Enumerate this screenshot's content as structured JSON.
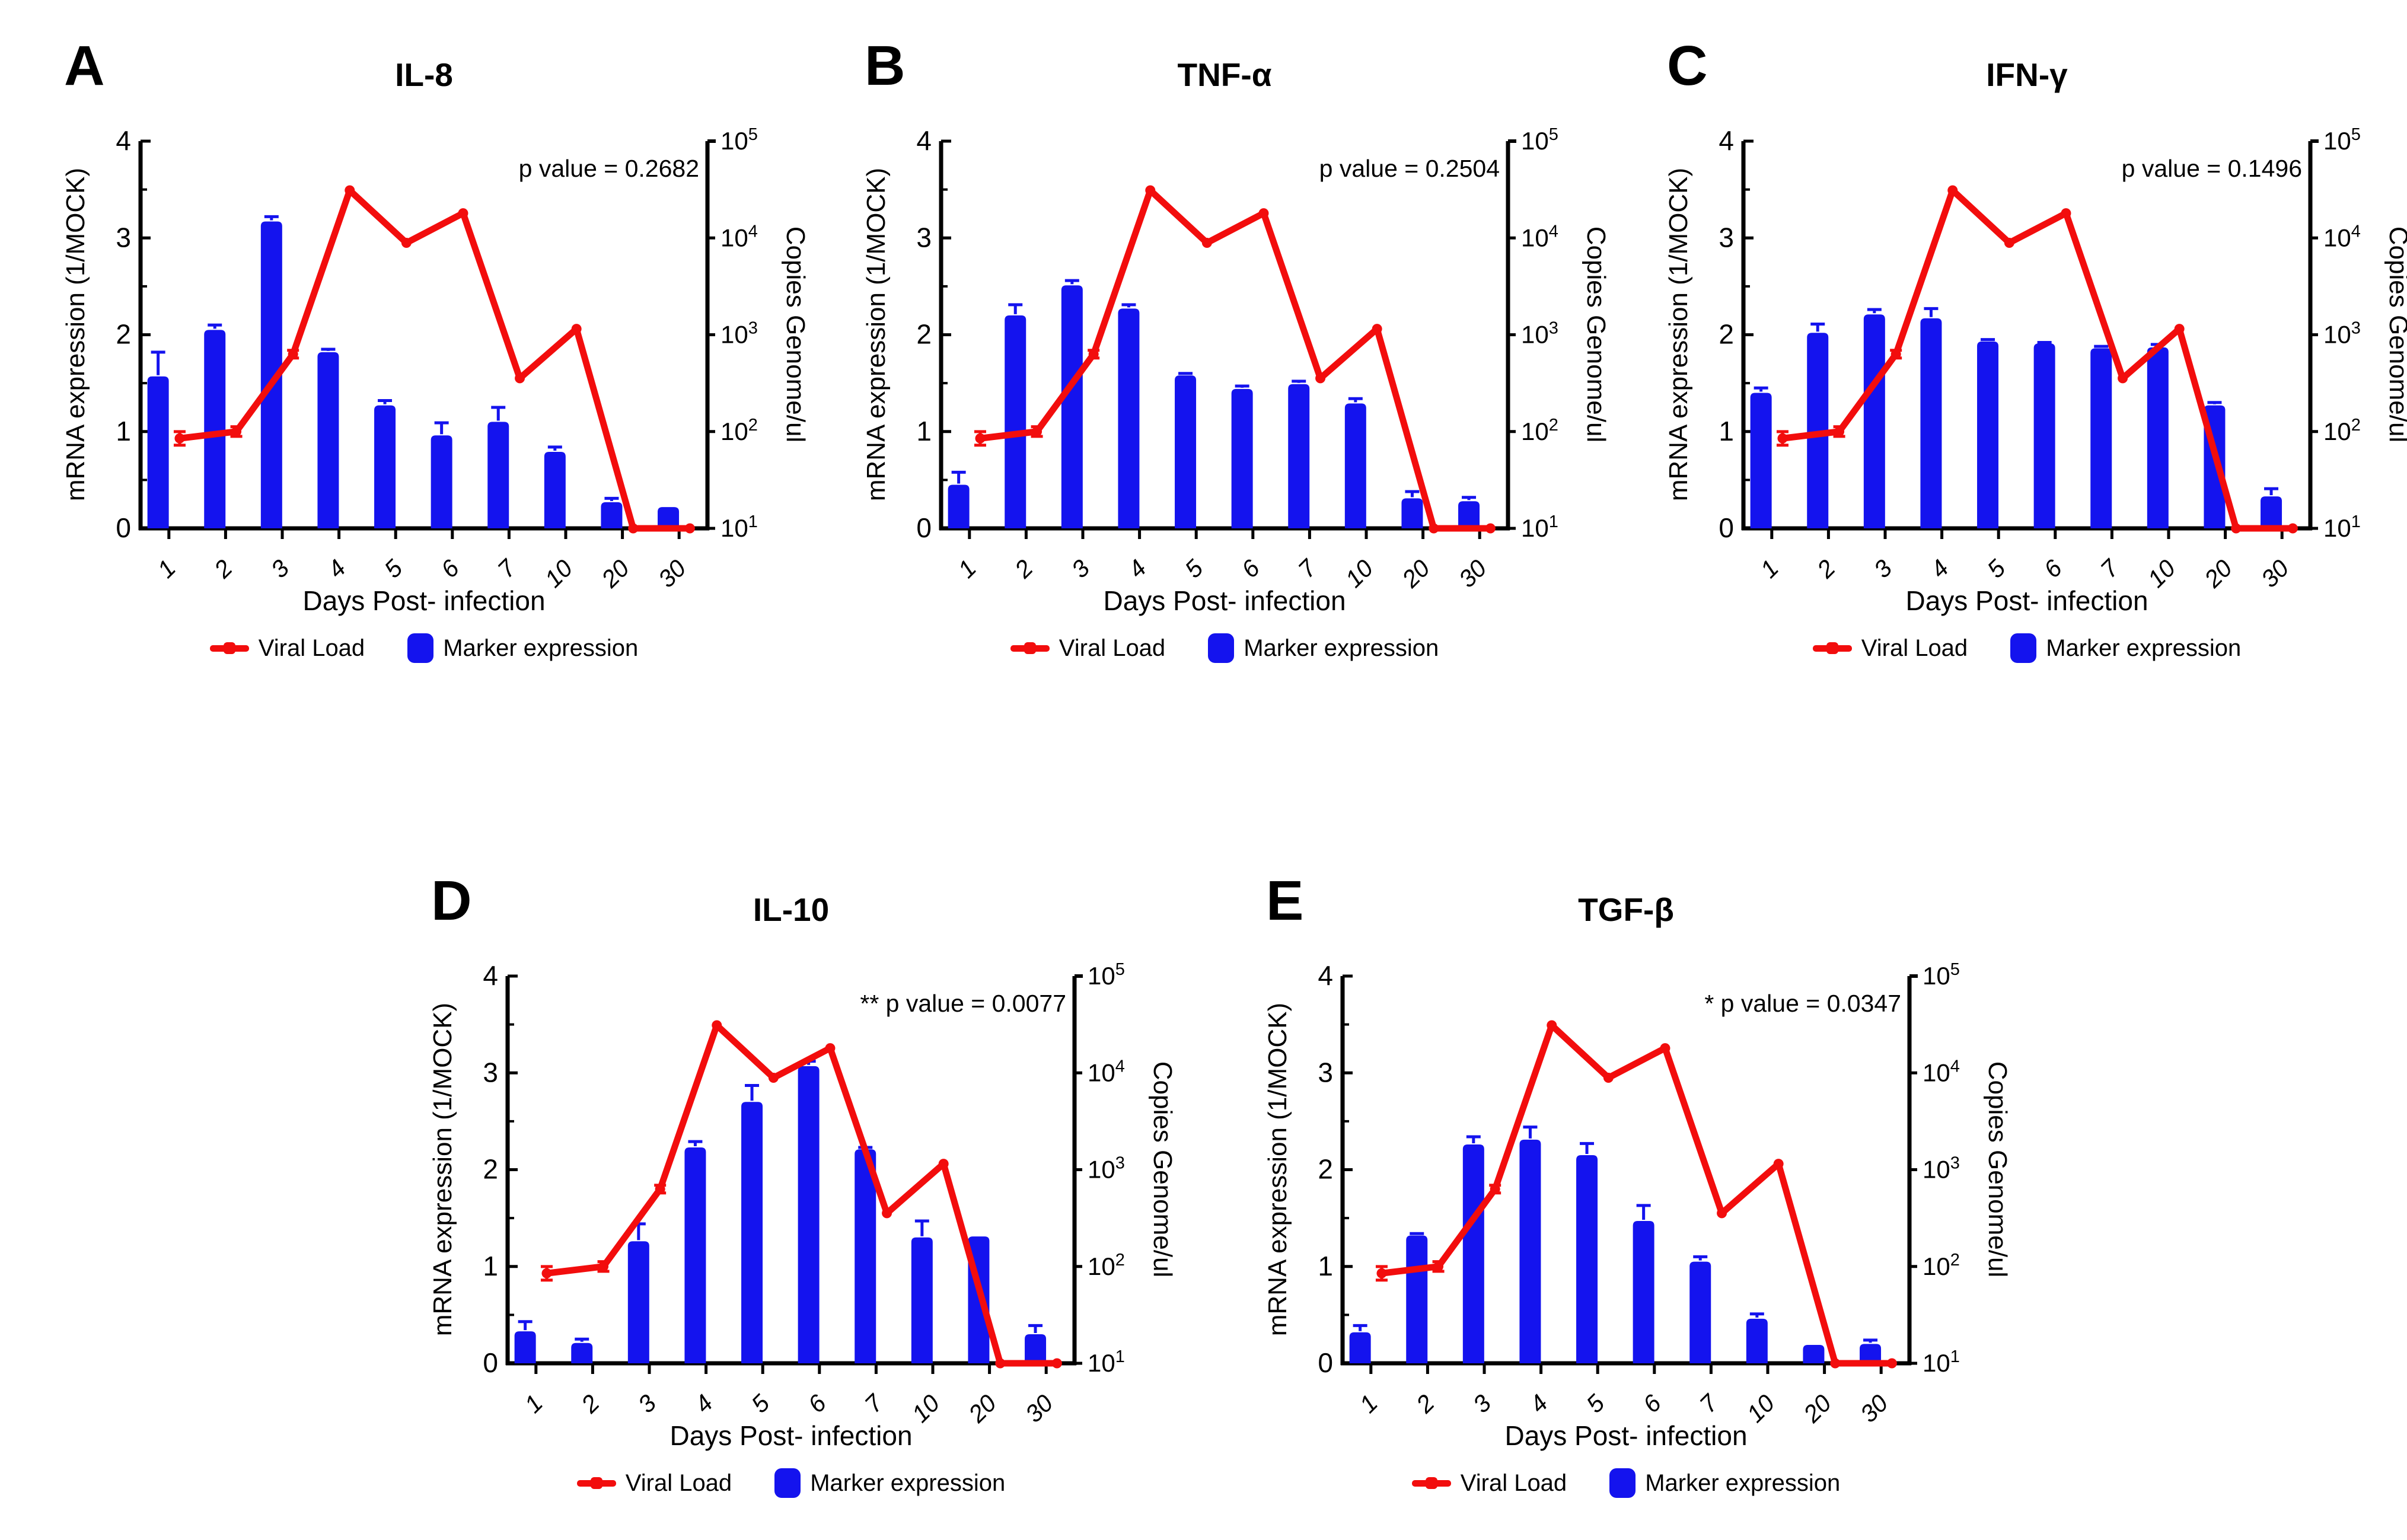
{
  "figure": {
    "axes": {
      "left_label": "mRNA expression (1/MOCK)",
      "right_label": "Copies Genome/ul",
      "x_label": "Days Post- infection",
      "left_ticks": [
        0,
        1,
        2,
        3,
        4
      ],
      "left_minor_ticks": [
        0.5,
        1.5,
        2.5,
        3.5
      ],
      "right_tick_exponents": [
        1,
        2,
        3,
        4,
        5
      ],
      "right_tick_base": "10"
    },
    "legend": {
      "viral_label": "Viral Load",
      "marker_label": "Marker expression"
    },
    "colors": {
      "bar_blue": "#1413ee",
      "line_red": "#f20d0d",
      "axis_black": "#000000",
      "background": "#ffffff"
    }
  },
  "chart_data": [
    {
      "letter": "A",
      "title": "IL-8",
      "p_label": "p value = 0.2682",
      "type": "bar+line",
      "categories": [
        "1",
        "2",
        "3",
        "4",
        "5",
        "6",
        "7",
        "10",
        "20",
        "30"
      ],
      "xlabel": "Days Post- infection",
      "ylabel_left": "mRNA expression (1/MOCK)",
      "ylabel_right": "Copies Genome/ul",
      "ylim_left": [
        0,
        4
      ],
      "right_axis": {
        "scale": "log10",
        "lim": [
          10,
          100000
        ],
        "ticks": [
          "10^1",
          "10^2",
          "10^3",
          "10^4",
          "10^5"
        ]
      },
      "series": [
        {
          "name": "Marker expression",
          "type": "bar",
          "axis": "left",
          "values": [
            1.57,
            2.05,
            3.17,
            1.82,
            1.27,
            0.96,
            1.1,
            0.79,
            0.27,
            0.22
          ],
          "errors": [
            0.25,
            0.05,
            0.05,
            0.03,
            0.05,
            0.13,
            0.15,
            0.05,
            0.04,
            0
          ]
        },
        {
          "name": "Viral Load",
          "type": "line",
          "axis": "right",
          "values": [
            85,
            100,
            630,
            31000,
            8900,
            18000,
            355,
            1150,
            10,
            10
          ],
          "errors_log": [
            0.07,
            0.05,
            0.04,
            0,
            0,
            0,
            0,
            0,
            0,
            0
          ]
        }
      ]
    },
    {
      "letter": "B",
      "title": "TNF-α",
      "p_label": "p value = 0.2504",
      "type": "bar+line",
      "categories": [
        "1",
        "2",
        "3",
        "4",
        "5",
        "6",
        "7",
        "10",
        "20",
        "30"
      ],
      "xlabel": "Days Post- infection",
      "ylabel_left": "mRNA expression (1/MOCK)",
      "ylabel_right": "Copies Genome/ul",
      "ylim_left": [
        0,
        4
      ],
      "right_axis": {
        "scale": "log10",
        "lim": [
          10,
          100000
        ],
        "ticks": [
          "10^1",
          "10^2",
          "10^3",
          "10^4",
          "10^5"
        ]
      },
      "series": [
        {
          "name": "Marker expression",
          "type": "bar",
          "axis": "left",
          "values": [
            0.45,
            2.2,
            2.51,
            2.27,
            1.58,
            1.44,
            1.49,
            1.29,
            0.31,
            0.28
          ],
          "errors": [
            0.13,
            0.11,
            0.05,
            0.04,
            0.02,
            0.03,
            0.03,
            0.05,
            0.07,
            0.04
          ]
        },
        {
          "name": "Viral Load",
          "type": "line",
          "axis": "right",
          "values": [
            85,
            100,
            630,
            31000,
            8900,
            18000,
            355,
            1150,
            10,
            10
          ],
          "errors_log": [
            0.07,
            0.05,
            0.04,
            0,
            0,
            0,
            0,
            0,
            0,
            0
          ]
        }
      ]
    },
    {
      "letter": "C",
      "title": "IFN-γ",
      "p_label": "p value = 0.1496",
      "type": "bar+line",
      "categories": [
        "1",
        "2",
        "3",
        "4",
        "5",
        "6",
        "7",
        "10",
        "20",
        "30"
      ],
      "xlabel": "Days Post- infection",
      "ylabel_left": "mRNA expression (1/MOCK)",
      "ylabel_right": "Copies Genome/ul",
      "ylim_left": [
        0,
        4
      ],
      "right_axis": {
        "scale": "log10",
        "lim": [
          10,
          100000
        ],
        "ticks": [
          "10^1",
          "10^2",
          "10^3",
          "10^4",
          "10^5"
        ]
      },
      "series": [
        {
          "name": "Marker expression",
          "type": "bar",
          "axis": "left",
          "values": [
            1.4,
            2.02,
            2.21,
            2.17,
            1.93,
            1.91,
            1.86,
            1.87,
            1.27,
            0.33
          ],
          "errors": [
            0.05,
            0.09,
            0.05,
            0.1,
            0.02,
            0.01,
            0.02,
            0.03,
            0.03,
            0.08
          ]
        },
        {
          "name": "Viral Load",
          "type": "line",
          "axis": "right",
          "values": [
            85,
            100,
            630,
            31000,
            8900,
            18000,
            355,
            1150,
            10,
            10
          ],
          "errors_log": [
            0.07,
            0.05,
            0.04,
            0,
            0,
            0,
            0,
            0,
            0,
            0
          ]
        }
      ]
    },
    {
      "letter": "D",
      "title": "IL-10",
      "p_label": "** p value = 0.0077",
      "type": "bar+line",
      "categories": [
        "1",
        "2",
        "3",
        "4",
        "5",
        "6",
        "7",
        "10",
        "20",
        "30"
      ],
      "xlabel": "Days Post- infection",
      "ylabel_left": "mRNA expression (1/MOCK)",
      "ylabel_right": "Copies Genome/ul",
      "ylim_left": [
        0,
        4
      ],
      "right_axis": {
        "scale": "log10",
        "lim": [
          10,
          100000
        ],
        "ticks": [
          "10^1",
          "10^2",
          "10^3",
          "10^4",
          "10^5"
        ]
      },
      "series": [
        {
          "name": "Marker expression",
          "type": "bar",
          "axis": "left",
          "values": [
            0.33,
            0.21,
            1.26,
            2.23,
            2.7,
            3.07,
            2.21,
            1.3,
            1.31,
            0.3
          ],
          "errors": [
            0.1,
            0.04,
            0.18,
            0.06,
            0.17,
            0.05,
            0.02,
            0.17,
            0,
            0.09
          ]
        },
        {
          "name": "Viral Load",
          "type": "line",
          "axis": "right",
          "values": [
            85,
            100,
            630,
            31000,
            8900,
            18000,
            355,
            1150,
            10,
            10
          ],
          "errors_log": [
            0.07,
            0.05,
            0.04,
            0,
            0,
            0,
            0,
            0,
            0,
            0
          ]
        }
      ]
    },
    {
      "letter": "E",
      "title": "TGF-β",
      "p_label": "* p value = 0.0347",
      "type": "bar+line",
      "categories": [
        "1",
        "2",
        "3",
        "4",
        "5",
        "6",
        "7",
        "10",
        "20",
        "30"
      ],
      "xlabel": "Days Post- infection",
      "ylabel_left": "mRNA expression (1/MOCK)",
      "ylabel_right": "Copies Genome/ul",
      "ylim_left": [
        0,
        4
      ],
      "right_axis": {
        "scale": "log10",
        "lim": [
          10,
          100000
        ],
        "ticks": [
          "10^1",
          "10^2",
          "10^3",
          "10^4",
          "10^5"
        ]
      },
      "series": [
        {
          "name": "Marker expression",
          "type": "bar",
          "axis": "left",
          "values": [
            0.32,
            1.32,
            2.26,
            2.31,
            2.15,
            1.47,
            1.05,
            0.46,
            0.19,
            0.2
          ],
          "errors": [
            0.07,
            0.02,
            0.08,
            0.13,
            0.12,
            0.16,
            0.05,
            0.05,
            0,
            0.04
          ]
        },
        {
          "name": "Viral Load",
          "type": "line",
          "axis": "right",
          "values": [
            85,
            100,
            630,
            31000,
            8900,
            18000,
            355,
            1150,
            10,
            10
          ],
          "errors_log": [
            0.07,
            0.05,
            0.04,
            0,
            0,
            0,
            0,
            0,
            0,
            0
          ]
        }
      ]
    }
  ]
}
